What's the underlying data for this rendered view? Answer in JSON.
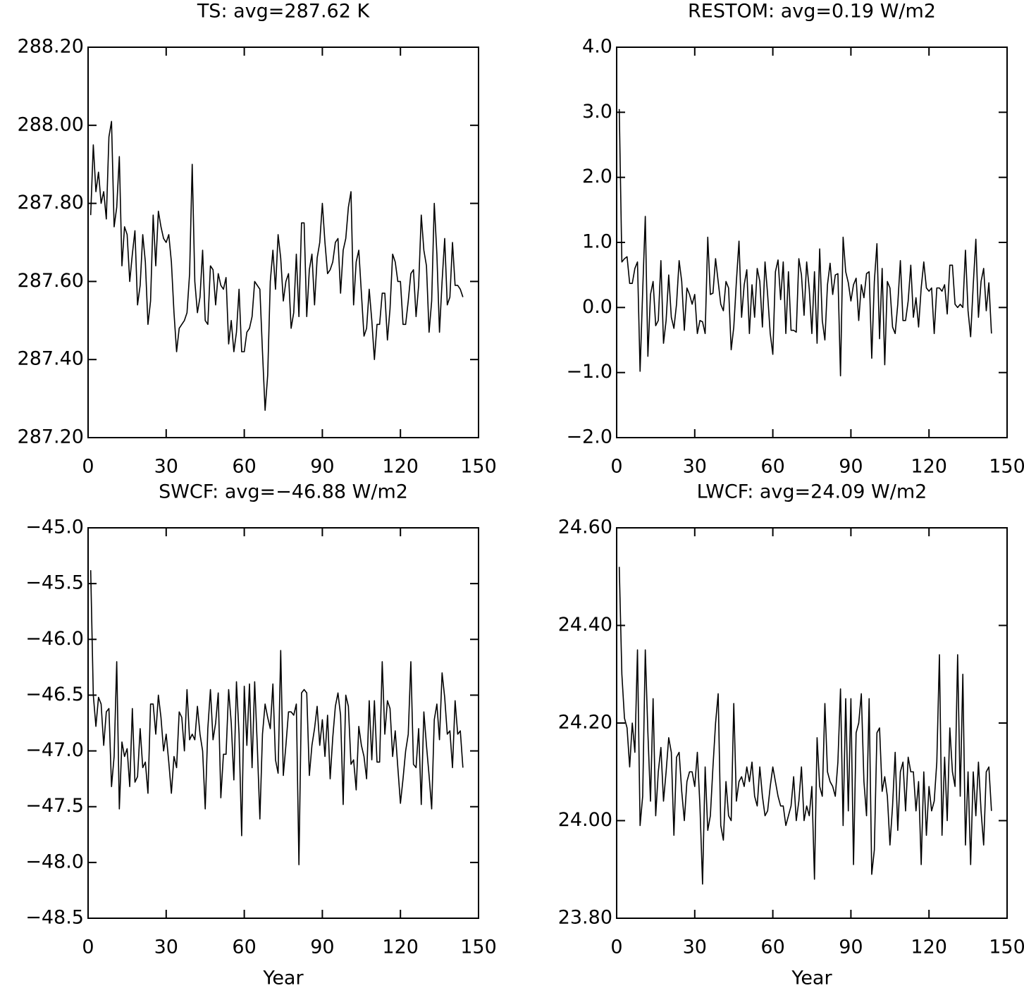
{
  "chart_data": [
    {
      "type": "line",
      "title": "TS: avg=287.62 K",
      "color": "#000000",
      "xlim": [
        0,
        150
      ],
      "xticks": [
        0,
        30,
        60,
        90,
        120,
        150
      ],
      "ylim": [
        287.2,
        288.2
      ],
      "yticks": [
        {
          "value": 287.2,
          "label": "287.20"
        },
        {
          "value": 287.4,
          "label": "287.40"
        },
        {
          "value": 287.6,
          "label": "287.60"
        },
        {
          "value": 287.8,
          "label": "287.80"
        },
        {
          "value": 288.0,
          "label": "288.00"
        },
        {
          "value": 288.2,
          "label": "288.20"
        }
      ],
      "x": [
        1,
        2,
        3,
        4,
        5,
        6,
        7,
        8,
        9,
        10,
        11,
        12,
        13,
        14,
        15,
        16,
        17,
        18,
        19,
        20,
        21,
        22,
        23,
        24,
        25,
        26,
        27,
        28,
        29,
        30,
        31,
        32,
        33,
        34,
        35,
        36,
        37,
        38,
        39,
        40,
        41,
        42,
        43,
        44,
        45,
        46,
        47,
        48,
        49,
        50,
        51,
        52,
        53,
        54,
        55,
        56,
        57,
        58,
        59,
        60,
        61,
        62,
        63,
        64,
        65,
        66,
        67,
        68,
        69,
        70,
        71,
        72,
        73,
        74,
        75,
        76,
        77,
        78,
        79,
        80,
        81,
        82,
        83,
        84,
        85,
        86,
        87,
        88,
        89,
        90,
        91,
        92,
        93,
        94,
        95,
        96,
        97,
        98,
        99,
        100,
        101,
        102,
        103,
        104,
        105,
        106,
        107,
        108,
        109,
        110,
        111,
        112,
        113,
        114,
        115,
        116,
        117,
        118,
        119,
        120,
        121,
        122,
        123,
        124,
        125,
        126,
        127,
        128,
        129,
        130,
        131,
        132,
        133,
        134,
        135,
        136,
        137,
        138,
        139,
        140,
        141,
        142,
        143,
        144
      ],
      "values": [
        287.77,
        287.95,
        287.83,
        287.88,
        287.8,
        287.83,
        287.76,
        287.97,
        288.01,
        287.74,
        287.79,
        287.92,
        287.64,
        287.74,
        287.72,
        287.6,
        287.67,
        287.73,
        287.54,
        287.59,
        287.72,
        287.65,
        287.49,
        287.55,
        287.77,
        287.64,
        287.78,
        287.74,
        287.71,
        287.7,
        287.72,
        287.65,
        287.52,
        287.42,
        287.48,
        287.49,
        287.5,
        287.52,
        287.62,
        287.9,
        287.6,
        287.52,
        287.56,
        287.68,
        287.5,
        287.49,
        287.64,
        287.63,
        287.54,
        287.62,
        287.59,
        287.58,
        287.61,
        287.44,
        287.5,
        287.42,
        287.47,
        287.58,
        287.42,
        287.42,
        287.47,
        287.48,
        287.51,
        287.6,
        287.59,
        287.58,
        287.42,
        287.27,
        287.36,
        287.6,
        287.68,
        287.58,
        287.72,
        287.66,
        287.55,
        287.6,
        287.62,
        287.48,
        287.52,
        287.67,
        287.51,
        287.75,
        287.75,
        287.51,
        287.63,
        287.67,
        287.54,
        287.66,
        287.7,
        287.8,
        287.7,
        287.62,
        287.63,
        287.65,
        287.7,
        287.71,
        287.57,
        287.68,
        287.71,
        287.79,
        287.83,
        287.54,
        287.65,
        287.68,
        287.57,
        287.46,
        287.48,
        287.58,
        287.5,
        287.4,
        287.49,
        287.49,
        287.57,
        287.57,
        287.45,
        287.53,
        287.67,
        287.65,
        287.6,
        287.6,
        287.49,
        287.49,
        287.55,
        287.62,
        287.63,
        287.51,
        287.59,
        287.77,
        287.68,
        287.64,
        287.47,
        287.55,
        287.8,
        287.67,
        287.47,
        287.6,
        287.71,
        287.54,
        287.56,
        287.7,
        287.59,
        287.59,
        287.58,
        287.56
      ]
    },
    {
      "type": "line",
      "title": "RESTOM: avg=0.19 W/m2",
      "color": "#000000",
      "xlim": [
        0,
        150
      ],
      "xticks": [
        0,
        30,
        60,
        90,
        120,
        150
      ],
      "ylim": [
        -2,
        4
      ],
      "yticks": [
        {
          "value": -2,
          "label": "−2.0"
        },
        {
          "value": -1,
          "label": "−1.0"
        },
        {
          "value": 0,
          "label": "0.0"
        },
        {
          "value": 1,
          "label": "1.0"
        },
        {
          "value": 2,
          "label": "2.0"
        },
        {
          "value": 3,
          "label": "3.0"
        },
        {
          "value": 4,
          "label": "4.0"
        }
      ],
      "x": [
        1,
        2,
        3,
        4,
        5,
        6,
        7,
        8,
        9,
        10,
        11,
        12,
        13,
        14,
        15,
        16,
        17,
        18,
        19,
        20,
        21,
        22,
        23,
        24,
        25,
        26,
        27,
        28,
        29,
        30,
        31,
        32,
        33,
        34,
        35,
        36,
        37,
        38,
        39,
        40,
        41,
        42,
        43,
        44,
        45,
        46,
        47,
        48,
        49,
        50,
        51,
        52,
        53,
        54,
        55,
        56,
        57,
        58,
        59,
        60,
        61,
        62,
        63,
        64,
        65,
        66,
        67,
        68,
        69,
        70,
        71,
        72,
        73,
        74,
        75,
        76,
        77,
        78,
        79,
        80,
        81,
        82,
        83,
        84,
        85,
        86,
        87,
        88,
        89,
        90,
        91,
        92,
        93,
        94,
        95,
        96,
        97,
        98,
        99,
        100,
        101,
        102,
        103,
        104,
        105,
        106,
        107,
        108,
        109,
        110,
        111,
        112,
        113,
        114,
        115,
        116,
        117,
        118,
        119,
        120,
        121,
        122,
        123,
        124,
        125,
        126,
        127,
        128,
        129,
        130,
        131,
        132,
        133,
        134,
        135,
        136,
        137,
        138,
        139,
        140,
        141,
        142,
        143,
        144
      ],
      "values": [
        3.05,
        0.7,
        0.75,
        0.78,
        0.37,
        0.37,
        0.6,
        0.7,
        -0.98,
        0.25,
        1.4,
        -0.75,
        0.2,
        0.4,
        -0.28,
        -0.2,
        0.72,
        -0.55,
        -0.2,
        0.5,
        -0.15,
        -0.32,
        0.05,
        0.72,
        0.4,
        -0.35,
        0.3,
        0.2,
        0.05,
        0.2,
        -0.4,
        -0.2,
        -0.22,
        -0.4,
        1.08,
        0.2,
        0.22,
        0.75,
        0.4,
        0.05,
        -0.05,
        0.4,
        0.3,
        -0.65,
        -0.3,
        0.4,
        1.02,
        -0.15,
        0.35,
        0.58,
        -0.4,
        0.35,
        -0.15,
        0.6,
        0.4,
        -0.3,
        0.7,
        0.2,
        -0.4,
        -0.72,
        0.55,
        0.73,
        0.12,
        0.7,
        -0.4,
        0.55,
        -0.35,
        -0.35,
        -0.38,
        0.75,
        0.5,
        -0.12,
        0.7,
        0.28,
        -0.4,
        0.55,
        -0.55,
        0.9,
        -0.2,
        -0.5,
        0.35,
        0.68,
        0.2,
        0.5,
        0.52,
        -1.05,
        1.08,
        0.55,
        0.38,
        0.1,
        0.35,
        0.45,
        -0.2,
        0.35,
        0.15,
        0.52,
        0.55,
        -0.78,
        0.4,
        0.98,
        -0.48,
        0.6,
        -0.88,
        0.4,
        0.3,
        -0.3,
        -0.4,
        0.05,
        0.72,
        -0.2,
        -0.2,
        0.1,
        0.65,
        -0.15,
        0.15,
        -0.3,
        0.3,
        0.7,
        0.3,
        0.25,
        0.3,
        -0.4,
        0.3,
        0.3,
        0.25,
        0.35,
        -0.1,
        0.65,
        0.65,
        0.05,
        0,
        0.05,
        0,
        0.88,
        -0.05,
        -0.45,
        0.35,
        1.05,
        -0.15,
        0.4,
        0.6,
        -0.05,
        0.38,
        -0.4
      ]
    },
    {
      "type": "line",
      "title": "SWCF: avg=−46.88 W/m2",
      "xlabel": "Year",
      "color": "#000000",
      "xlim": [
        0,
        150
      ],
      "xticks": [
        0,
        30,
        60,
        90,
        120,
        150
      ],
      "ylim": [
        -48.5,
        -45
      ],
      "yticks": [
        {
          "value": -48.5,
          "label": "−48.5"
        },
        {
          "value": -48,
          "label": "−48.0"
        },
        {
          "value": -47.5,
          "label": "−47.5"
        },
        {
          "value": -47,
          "label": "−47.0"
        },
        {
          "value": -46.5,
          "label": "−46.5"
        },
        {
          "value": -46,
          "label": "−46.0"
        },
        {
          "value": -45.5,
          "label": "−45.5"
        },
        {
          "value": -45,
          "label": "−45.0"
        }
      ],
      "x": [
        1,
        2,
        3,
        4,
        5,
        6,
        7,
        8,
        9,
        10,
        11,
        12,
        13,
        14,
        15,
        16,
        17,
        18,
        19,
        20,
        21,
        22,
        23,
        24,
        25,
        26,
        27,
        28,
        29,
        30,
        31,
        32,
        33,
        34,
        35,
        36,
        37,
        38,
        39,
        40,
        41,
        42,
        43,
        44,
        45,
        46,
        47,
        48,
        49,
        50,
        51,
        52,
        53,
        54,
        55,
        56,
        57,
        58,
        59,
        60,
        61,
        62,
        63,
        64,
        65,
        66,
        67,
        68,
        69,
        70,
        71,
        72,
        73,
        74,
        75,
        76,
        77,
        78,
        79,
        80,
        81,
        82,
        83,
        84,
        85,
        86,
        87,
        88,
        89,
        90,
        91,
        92,
        93,
        94,
        95,
        96,
        97,
        98,
        99,
        100,
        101,
        102,
        103,
        104,
        105,
        106,
        107,
        108,
        109,
        110,
        111,
        112,
        113,
        114,
        115,
        116,
        117,
        118,
        119,
        120,
        121,
        122,
        123,
        124,
        125,
        126,
        127,
        128,
        129,
        130,
        131,
        132,
        133,
        134,
        135,
        136,
        137,
        138,
        139,
        140,
        141,
        142,
        143,
        144
      ],
      "values": [
        -45.38,
        -46.5,
        -46.78,
        -46.52,
        -46.58,
        -46.95,
        -46.65,
        -46.62,
        -47.32,
        -47.05,
        -46.2,
        -47.52,
        -46.92,
        -47.05,
        -46.98,
        -47.32,
        -46.62,
        -47.28,
        -47.23,
        -46.8,
        -47.15,
        -47.1,
        -47.38,
        -46.58,
        -46.58,
        -46.85,
        -46.5,
        -46.7,
        -47.0,
        -46.85,
        -47.1,
        -47.38,
        -47.05,
        -47.15,
        -46.65,
        -46.7,
        -47.0,
        -46.45,
        -46.9,
        -46.85,
        -46.9,
        -46.6,
        -46.85,
        -47.0,
        -47.52,
        -46.8,
        -46.45,
        -46.9,
        -46.75,
        -46.48,
        -47.42,
        -47.03,
        -47.03,
        -46.45,
        -46.75,
        -47.26,
        -46.38,
        -46.85,
        -47.76,
        -46.42,
        -46.95,
        -46.4,
        -47.15,
        -46.38,
        -46.95,
        -47.61,
        -46.85,
        -46.58,
        -46.7,
        -46.8,
        -46.4,
        -47.08,
        -47.2,
        -46.1,
        -47.22,
        -46.95,
        -46.65,
        -46.65,
        -46.68,
        -46.58,
        -48.02,
        -46.48,
        -46.45,
        -46.48,
        -47.22,
        -46.95,
        -46.8,
        -46.6,
        -46.95,
        -46.72,
        -47.05,
        -46.68,
        -47.25,
        -46.88,
        -46.6,
        -46.48,
        -46.68,
        -47.48,
        -46.5,
        -46.6,
        -47.12,
        -47.08,
        -47.35,
        -46.78,
        -46.95,
        -47.05,
        -47.25,
        -46.55,
        -47.08,
        -46.55,
        -47.1,
        -47.1,
        -46.2,
        -46.85,
        -46.55,
        -46.62,
        -47.05,
        -46.82,
        -47.15,
        -47.47,
        -47.25,
        -47.0,
        -46.85,
        -46.2,
        -47.12,
        -47.15,
        -46.8,
        -47.48,
        -46.65,
        -46.95,
        -47.22,
        -47.52,
        -46.72,
        -46.58,
        -46.9,
        -46.3,
        -46.52,
        -46.85,
        -46.82,
        -47.15,
        -46.55,
        -46.85,
        -46.82,
        -47.15
      ]
    },
    {
      "type": "line",
      "title": "LWCF: avg=24.09 W/m2",
      "xlabel": "Year",
      "color": "#000000",
      "xlim": [
        0,
        150
      ],
      "xticks": [
        0,
        30,
        60,
        90,
        120,
        150
      ],
      "ylim": [
        23.8,
        24.6
      ],
      "yticks": [
        {
          "value": 23.8,
          "label": "23.80"
        },
        {
          "value": 24.0,
          "label": "24.00"
        },
        {
          "value": 24.2,
          "label": "24.20"
        },
        {
          "value": 24.4,
          "label": "24.40"
        },
        {
          "value": 24.6,
          "label": "24.60"
        }
      ],
      "x": [
        1,
        2,
        3,
        4,
        5,
        6,
        7,
        8,
        9,
        10,
        11,
        12,
        13,
        14,
        15,
        16,
        17,
        18,
        19,
        20,
        21,
        22,
        23,
        24,
        25,
        26,
        27,
        28,
        29,
        30,
        31,
        32,
        33,
        34,
        35,
        36,
        37,
        38,
        39,
        40,
        41,
        42,
        43,
        44,
        45,
        46,
        47,
        48,
        49,
        50,
        51,
        52,
        53,
        54,
        55,
        56,
        57,
        58,
        59,
        60,
        61,
        62,
        63,
        64,
        65,
        66,
        67,
        68,
        69,
        70,
        71,
        72,
        73,
        74,
        75,
        76,
        77,
        78,
        79,
        80,
        81,
        82,
        83,
        84,
        85,
        86,
        87,
        88,
        89,
        90,
        91,
        92,
        93,
        94,
        95,
        96,
        97,
        98,
        99,
        100,
        101,
        102,
        103,
        104,
        105,
        106,
        107,
        108,
        109,
        110,
        111,
        112,
        113,
        114,
        115,
        116,
        117,
        118,
        119,
        120,
        121,
        122,
        123,
        124,
        125,
        126,
        127,
        128,
        129,
        130,
        131,
        132,
        133,
        134,
        135,
        136,
        137,
        138,
        139,
        140,
        141,
        142,
        143,
        144
      ],
      "values": [
        24.52,
        24.3,
        24.21,
        24.19,
        24.11,
        24.2,
        24.14,
        24.35,
        23.99,
        24.05,
        24.35,
        24.18,
        24.04,
        24.25,
        24.01,
        24.1,
        24.15,
        24.04,
        24.1,
        24.17,
        24.14,
        23.97,
        24.13,
        24.14,
        24.06,
        24.0,
        24.08,
        24.1,
        24.1,
        24.07,
        24.14,
        24.03,
        23.87,
        24.11,
        23.98,
        24.01,
        24.11,
        24.2,
        24.26,
        23.99,
        23.96,
        24.08,
        24.01,
        24.0,
        24.24,
        24.04,
        24.08,
        24.09,
        24.07,
        24.11,
        24.08,
        24.12,
        24.05,
        24.03,
        24.11,
        24.05,
        24.01,
        24.02,
        24.07,
        24.11,
        24.08,
        24.05,
        24.03,
        24.03,
        23.99,
        24.01,
        24.03,
        24.09,
        24.0,
        24.04,
        24.11,
        24.0,
        24.03,
        24.01,
        24.07,
        23.88,
        24.17,
        24.07,
        24.05,
        24.24,
        24.1,
        24.08,
        24.07,
        24.05,
        24.12,
        24.27,
        23.99,
        24.25,
        24.02,
        24.25,
        23.91,
        24.18,
        24.2,
        24.26,
        24.08,
        24.01,
        24.25,
        23.89,
        23.94,
        24.18,
        24.19,
        24.06,
        24.09,
        24.05,
        23.95,
        24.03,
        24.14,
        23.98,
        24.1,
        24.12,
        24.02,
        24.13,
        24.1,
        24.1,
        24.02,
        24.08,
        23.91,
        24.1,
        23.97,
        24.07,
        24.02,
        24.04,
        24.12,
        24.34,
        23.97,
        24.13,
        24.0,
        24.19,
        24.1,
        24.07,
        24.34,
        24.05,
        24.3,
        23.95,
        24.1,
        23.91,
        24.1,
        24.01,
        24.12,
        24.02,
        23.95,
        24.1,
        24.11,
        24.02
      ]
    }
  ]
}
